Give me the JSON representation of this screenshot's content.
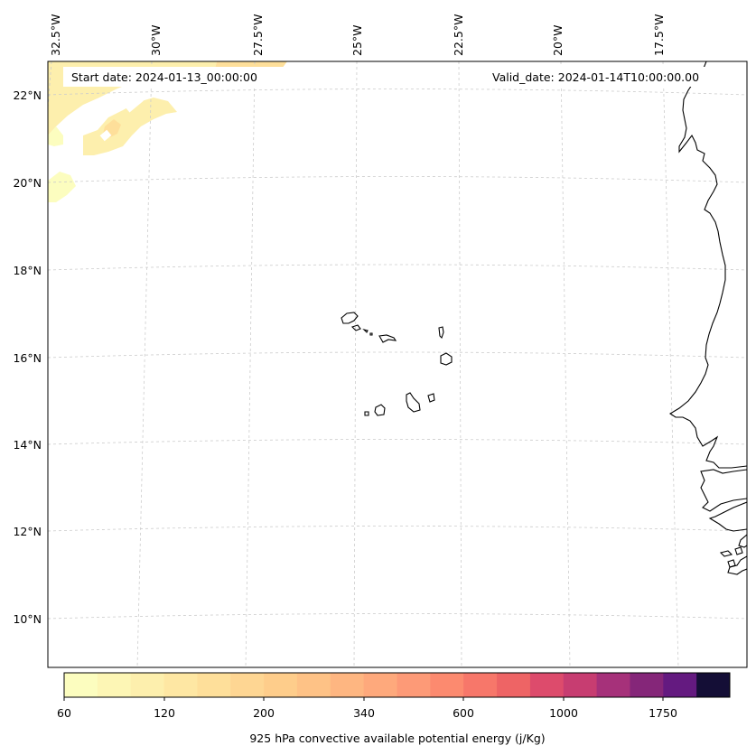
{
  "map": {
    "start_date": "Start date: 2024-01-13_00:00:00",
    "valid_date": "Valid_date: 2024-01-14T10:00:00.00",
    "lon_labels": [
      "32.5°W",
      "30°W",
      "27.5°W",
      "25°W",
      "22.5°W",
      "20°W",
      "17.5°W"
    ],
    "lat_labels": [
      "22°N",
      "20°N",
      "18°N",
      "16°N",
      "14°N",
      "12°N",
      "10°N"
    ],
    "coastline_color": "#000000",
    "gridline_color": "#cccccc"
  },
  "colorbar": {
    "label": "925 hPa convective available potential energy (j/Kg)",
    "tick_labels": [
      "60",
      "120",
      "200",
      "340",
      "600",
      "1000",
      "1750"
    ],
    "colors": [
      "#fcfdbf",
      "#fdf6b5",
      "#fdefad",
      "#fee7a3",
      "#fedf9a",
      "#fed693",
      "#fecd8b",
      "#fec286",
      "#feb681",
      "#fea97c",
      "#fd9a77",
      "#fc8a6f",
      "#f7776a",
      "#ee6465",
      "#dd4b6c",
      "#c73d71",
      "#a6317a",
      "#852679",
      "#641a80",
      "#140e36"
    ],
    "cape_field_colors": [
      "#fcfdbf",
      "#fdefad",
      "#fedf9a",
      "#fecd8b"
    ]
  }
}
